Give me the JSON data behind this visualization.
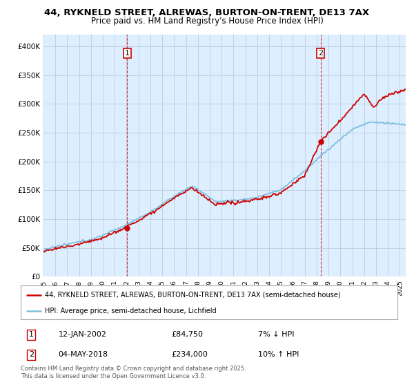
{
  "title_line1": "44, RYKNELD STREET, ALREWAS, BURTON-ON-TRENT, DE13 7AX",
  "title_line2": "Price paid vs. HM Land Registry's House Price Index (HPI)",
  "ylabel_ticks": [
    "£0",
    "£50K",
    "£100K",
    "£150K",
    "£200K",
    "£250K",
    "£300K",
    "£350K",
    "£400K"
  ],
  "ylabel_values": [
    0,
    50000,
    100000,
    150000,
    200000,
    250000,
    300000,
    350000,
    400000
  ],
  "ylim": [
    0,
    420000
  ],
  "xlim_start": 1995.0,
  "xlim_end": 2025.5,
  "xtick_years": [
    1995,
    1996,
    1997,
    1998,
    1999,
    2000,
    2001,
    2002,
    2003,
    2004,
    2005,
    2006,
    2007,
    2008,
    2009,
    2010,
    2011,
    2012,
    2013,
    2014,
    2015,
    2016,
    2017,
    2018,
    2019,
    2020,
    2021,
    2022,
    2023,
    2024,
    2025
  ],
  "hpi_color": "#7fbfdf",
  "price_color": "#cc0000",
  "bg_chart_color": "#ddeeff",
  "marker1_x": 2002.04,
  "marker1_y": 84750,
  "marker2_x": 2018.34,
  "marker2_y": 234000,
  "marker1_label": "1",
  "marker2_label": "2",
  "vline_color": "#cc0000",
  "legend_line1": "44, RYKNELD STREET, ALREWAS, BURTON-ON-TRENT, DE13 7AX (semi-detached house)",
  "legend_line2": "HPI: Average price, semi-detached house, Lichfield",
  "table_row1": [
    "1",
    "12-JAN-2002",
    "£84,750",
    "7% ↓ HPI"
  ],
  "table_row2": [
    "2",
    "04-MAY-2018",
    "£234,000",
    "10% ↑ HPI"
  ],
  "footnote": "Contains HM Land Registry data © Crown copyright and database right 2025.\nThis data is licensed under the Open Government Licence v3.0.",
  "background_color": "#ffffff",
  "grid_color": "#bbccdd"
}
